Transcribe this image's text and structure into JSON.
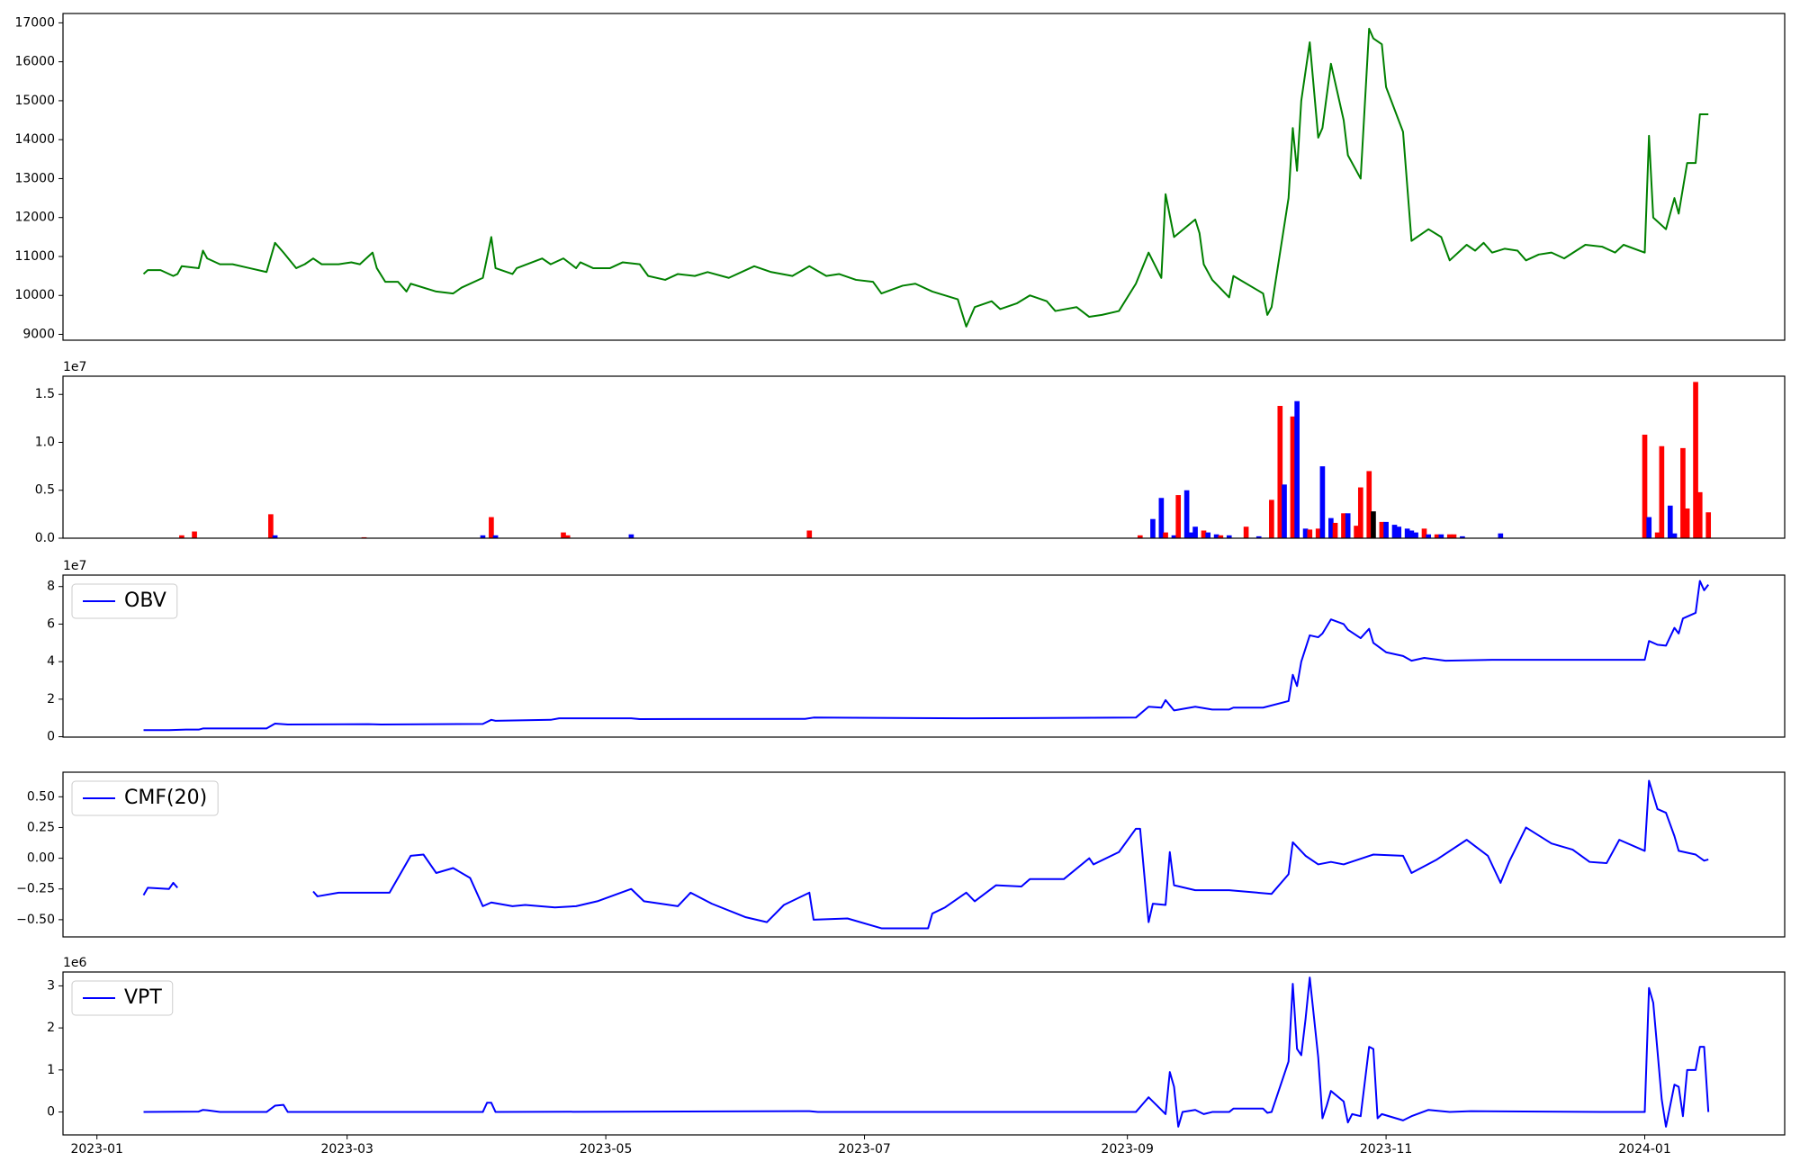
{
  "chart_data": [
    {
      "type": "line",
      "color": "green",
      "xlim": [
        19350,
        19756
      ],
      "ylim": [
        8850,
        17240
      ],
      "yticks": [
        9000,
        10000,
        11000,
        12000,
        13000,
        14000,
        15000,
        16000,
        17000
      ],
      "x": [
        19369,
        19370,
        19373,
        19376,
        19377,
        19378,
        19382,
        19383,
        19384,
        19387,
        19390,
        19394,
        19398,
        19400,
        19402,
        19405,
        19407,
        19409,
        19411,
        19415,
        19418,
        19420,
        19423,
        19424,
        19426,
        19429,
        19431,
        19432,
        19438,
        19442,
        19444,
        19449,
        19451,
        19452,
        19456,
        19457,
        19463,
        19465,
        19468,
        19471,
        19472,
        19475,
        19479,
        19482,
        19486,
        19488,
        19492,
        19495,
        19499,
        19502,
        19507,
        19513,
        19517,
        19522,
        19526,
        19530,
        19533,
        19537,
        19541,
        19543,
        19548,
        19551,
        19555,
        19561,
        19563,
        19565,
        19569,
        19571,
        19575,
        19578,
        19582,
        19584,
        19589,
        19592,
        19595,
        19599,
        19603,
        19606,
        19609,
        19610,
        19612,
        19617,
        19618,
        19619,
        19621,
        19625,
        19626,
        19633,
        19634,
        19635,
        19639,
        19640,
        19641,
        19642,
        19644,
        19646,
        19647,
        19649,
        19652,
        19653,
        19656,
        19658,
        19659,
        19661,
        19662,
        19666,
        19668,
        19672,
        19675,
        19677,
        19681,
        19683,
        19685,
        19687,
        19690,
        19693,
        19695,
        19698,
        19701,
        19704,
        19709,
        19713,
        19716,
        19718,
        19723,
        19724,
        19725,
        19728,
        19730,
        19731,
        19733,
        19735,
        19736,
        19738
      ],
      "values": [
        10550,
        10650,
        10650,
        10500,
        10550,
        10750,
        10700,
        11150,
        10950,
        10800,
        10800,
        10700,
        10600,
        11350,
        11100,
        10700,
        10800,
        10950,
        10800,
        10800,
        10850,
        10800,
        11100,
        10700,
        10350,
        10350,
        10100,
        10300,
        10100,
        10050,
        10200,
        10450,
        11500,
        10700,
        10550,
        10700,
        10950,
        10800,
        10950,
        10700,
        10850,
        10700,
        10700,
        10850,
        10800,
        10500,
        10400,
        10550,
        10500,
        10600,
        10450,
        10750,
        10600,
        10500,
        10750,
        10500,
        10550,
        10400,
        10350,
        10050,
        10250,
        10300,
        10100,
        9900,
        9200,
        9700,
        9850,
        9650,
        9800,
        10000,
        9850,
        9600,
        9700,
        9450,
        9500,
        9600,
        10300,
        11100,
        10450,
        12600,
        11500,
        11950,
        11600,
        10800,
        10400,
        9950,
        10500,
        10050,
        9500,
        9700,
        12500,
        14300,
        13200,
        15000,
        16500,
        14050,
        14300,
        15950,
        14500,
        13600,
        13000,
        16850,
        16600,
        16450,
        15350,
        14200,
        11400,
        11700,
        11500,
        10900,
        11300,
        11150,
        11350,
        11100,
        11200,
        11150,
        10900,
        11050,
        11100,
        10950,
        11300,
        11250,
        11100,
        11300,
        11100,
        14100,
        12000,
        11700,
        12500,
        12100,
        13400,
        13400,
        14650,
        14650
      ]
    },
    {
      "type": "bar",
      "offset_label": "1e7",
      "xlim": [
        19350,
        19756
      ],
      "ylim": [
        0,
        16900000
      ],
      "yticks": [
        {
          "value": 0,
          "label": "0.0"
        },
        {
          "value": 5000000,
          "label": "0.5"
        },
        {
          "value": 10000000,
          "label": "1.0"
        },
        {
          "value": 15000000,
          "label": "1.5"
        }
      ],
      "x": [
        19378,
        19381,
        19399,
        19400,
        19421,
        19449,
        19451,
        19452,
        19468,
        19469,
        19484,
        19526,
        19604,
        19607,
        19609,
        19610,
        19612,
        19613,
        19615,
        19616,
        19617,
        19619,
        19620,
        19622,
        19623,
        19625,
        19629,
        19632,
        19635,
        19637,
        19638,
        19640,
        19641,
        19643,
        19644,
        19646,
        19647,
        19649,
        19650,
        19652,
        19653,
        19655,
        19656,
        19658,
        19659,
        19661,
        19662,
        19664,
        19665,
        19667,
        19668,
        19669,
        19671,
        19672,
        19674,
        19675,
        19677,
        19678,
        19680,
        19689,
        19723,
        19724,
        19726,
        19727,
        19729,
        19730,
        19732,
        19733,
        19735,
        19736,
        19738
      ],
      "values": [
        300000,
        700000,
        2500000,
        300000,
        100000,
        300000,
        2200000,
        300000,
        600000,
        300000,
        400000,
        800000,
        300000,
        2000000,
        4200000,
        600000,
        300000,
        4500000,
        5000000,
        600000,
        1200000,
        800000,
        600000,
        400000,
        300000,
        300000,
        1200000,
        200000,
        4000000,
        13800000,
        5600000,
        12700000,
        14300000,
        1000000,
        900000,
        1000000,
        7500000,
        2100000,
        1600000,
        2600000,
        2600000,
        1300000,
        5300000,
        7000000,
        2800000,
        1700000,
        1700000,
        1400000,
        1200000,
        1000000,
        800000,
        600000,
        1000000,
        400000,
        400000,
        400000,
        400000,
        400000,
        200000,
        500000,
        10800000,
        2200000,
        600000,
        9600000,
        3400000,
        500000,
        9400000,
        3100000,
        16300000,
        4800000,
        2700000
      ],
      "colors": [
        "red",
        "red",
        "red",
        "blue",
        "red",
        "blue",
        "red",
        "blue",
        "red",
        "red",
        "blue",
        "red",
        "red",
        "blue",
        "blue",
        "red",
        "blue",
        "red",
        "blue",
        "blue",
        "blue",
        "red",
        "blue",
        "blue",
        "red",
        "blue",
        "red",
        "blue",
        "red",
        "red",
        "blue",
        "red",
        "blue",
        "blue",
        "red",
        "red",
        "blue",
        "blue",
        "red",
        "red",
        "blue",
        "red",
        "red",
        "red",
        "black",
        "red",
        "blue",
        "blue",
        "blue",
        "blue",
        "blue",
        "blue",
        "red",
        "blue",
        "red",
        "blue",
        "red",
        "red",
        "blue",
        "blue",
        "red",
        "blue",
        "red",
        "red",
        "blue",
        "blue",
        "red",
        "red",
        "red",
        "red",
        "red"
      ]
    },
    {
      "type": "line",
      "offset_label": "1e7",
      "legend": "upper left",
      "xlim": [
        19350,
        19756
      ],
      "ylim": [
        -200000,
        86100000
      ],
      "yticks": [
        0,
        {
          "value": 20000000,
          "label": "2"
        },
        {
          "value": 40000000,
          "label": "4"
        },
        {
          "value": 60000000,
          "label": "6"
        },
        {
          "value": 80000000,
          "label": "8"
        }
      ],
      "x": [
        19369,
        19375,
        19379,
        19382,
        19383,
        19398,
        19400,
        19403,
        19422,
        19425,
        19449,
        19451,
        19452,
        19465,
        19467,
        19484,
        19486,
        19525,
        19527,
        19563,
        19603,
        19606,
        19609,
        19610,
        19612,
        19617,
        19621,
        19625,
        19626,
        19633,
        19639,
        19640,
        19641,
        19642,
        19644,
        19646,
        19647,
        19649,
        19652,
        19653,
        19656,
        19658,
        19659,
        19662,
        19666,
        19668,
        19671,
        19676,
        19687,
        19714,
        19723,
        19724,
        19726,
        19728,
        19730,
        19731,
        19732,
        19735,
        19736,
        19737,
        19738
      ],
      "series": [
        {
          "name": "OBV",
          "color": "blue",
          "values": [
            3500000,
            3500000,
            3800000,
            3800000,
            4400000,
            4400000,
            7000000,
            6500000,
            6700000,
            6500000,
            6800000,
            9000000,
            8500000,
            9000000,
            9800000,
            9800000,
            9400000,
            9500000,
            10200000,
            9800000,
            10200000,
            16000000,
            15500000,
            19500000,
            14000000,
            16000000,
            14500000,
            14500000,
            15500000,
            15500000,
            19000000,
            33000000,
            27000000,
            40000000,
            54000000,
            53000000,
            55000000,
            62500000,
            60000000,
            57000000,
            52500000,
            57500000,
            50000000,
            45000000,
            43000000,
            40500000,
            42000000,
            40500000,
            41000000,
            41000000,
            41000000,
            51000000,
            49000000,
            48500000,
            58000000,
            55000000,
            63000000,
            66000000,
            83000000,
            78000000,
            81000000
          ]
        }
      ]
    },
    {
      "type": "line",
      "legend": "upper left",
      "xlim": [
        19350,
        19756
      ],
      "ylim": [
        -0.64,
        0.7
      ],
      "yticks": [
        {
          "value": -0.5,
          "label": "−0.50"
        },
        {
          "value": -0.25,
          "label": "−0.25"
        },
        {
          "value": 0,
          "label": "0.00"
        },
        {
          "value": 0.25,
          "label": "0.25"
        },
        {
          "value": 0.5,
          "label": "0.50"
        }
      ],
      "x": [
        19369,
        19370,
        19375,
        19376,
        19377,
        19390,
        19409,
        19410,
        19415,
        19422,
        19427,
        19429,
        19432,
        19435,
        19438,
        19442,
        19446,
        19449,
        19451,
        19456,
        19459,
        19466,
        19471,
        19476,
        19484,
        19487,
        19495,
        19498,
        19503,
        19511,
        19516,
        19520,
        19526,
        19527,
        19535,
        19543,
        19554,
        19555,
        19558,
        19563,
        19565,
        19570,
        19576,
        19578,
        19586,
        19592,
        19593,
        19599,
        19603,
        19604,
        19606,
        19607,
        19610,
        19611,
        19612,
        19617,
        19625,
        19635,
        19639,
        19640,
        19643,
        19646,
        19649,
        19652,
        19659,
        19666,
        19668,
        19674,
        19681,
        19686,
        19689,
        19691,
        19695,
        19701,
        19706,
        19710,
        19714,
        19717,
        19723,
        19724,
        19726,
        19728,
        19730,
        19731,
        19735,
        19737,
        19738
      ],
      "series": [
        {
          "name": "CMF(20)",
          "color": "blue",
          "values": [
            -0.3,
            -0.24,
            -0.25,
            -0.2,
            -0.24,
            null,
            -0.27,
            -0.31,
            -0.28,
            -0.28,
            -0.28,
            -0.16,
            0.02,
            0.03,
            -0.12,
            -0.08,
            -0.16,
            -0.39,
            -0.36,
            -0.39,
            -0.38,
            -0.4,
            -0.39,
            -0.35,
            -0.25,
            -0.35,
            -0.39,
            -0.28,
            -0.37,
            -0.48,
            -0.52,
            -0.38,
            -0.28,
            -0.5,
            -0.49,
            -0.57,
            -0.57,
            -0.45,
            -0.4,
            -0.28,
            -0.35,
            -0.22,
            -0.23,
            -0.17,
            -0.17,
            0.0,
            -0.05,
            0.05,
            0.24,
            0.24,
            -0.52,
            -0.37,
            -0.38,
            0.05,
            -0.22,
            -0.26,
            -0.26,
            -0.29,
            -0.13,
            0.13,
            0.02,
            -0.05,
            -0.03,
            -0.05,
            0.03,
            0.02,
            -0.12,
            -0.01,
            0.15,
            0.02,
            -0.2,
            -0.03,
            0.25,
            0.12,
            0.07,
            -0.03,
            -0.04,
            0.15,
            0.06,
            0.63,
            0.4,
            0.37,
            0.18,
            0.06,
            0.03,
            -0.02,
            -0.01
          ]
        }
      ]
    },
    {
      "type": "line",
      "offset_label": "1e6",
      "legend": "upper left",
      "xlim": [
        19350,
        19756
      ],
      "ylim": [
        -545000,
        3330000
      ],
      "yticks": [
        0,
        {
          "value": 1000000,
          "label": "1"
        },
        {
          "value": 2000000,
          "label": "2"
        },
        {
          "value": 3000000,
          "label": "3"
        }
      ],
      "xticks": [
        {
          "value": 19358,
          "label": "2023-01"
        },
        {
          "value": 19417,
          "label": "2023-03"
        },
        {
          "value": 19478,
          "label": "2023-05"
        },
        {
          "value": 19539,
          "label": "2023-07"
        },
        {
          "value": 19601,
          "label": "2023-09"
        },
        {
          "value": 19662,
          "label": "2023-11"
        },
        {
          "value": 19723,
          "label": "2024-01"
        }
      ],
      "x": [
        19369,
        19382,
        19383,
        19384,
        19387,
        19398,
        19400,
        19402,
        19403,
        19449,
        19450,
        19451,
        19452,
        19526,
        19528,
        19603,
        19606,
        19609,
        19610,
        19611,
        19612,
        19613,
        19614,
        19617,
        19619,
        19621,
        19625,
        19626,
        19633,
        19634,
        19635,
        19639,
        19640,
        19641,
        19642,
        19643,
        19644,
        19646,
        19647,
        19648,
        19649,
        19652,
        19653,
        19654,
        19656,
        19658,
        19659,
        19660,
        19661,
        19666,
        19668,
        19672,
        19677,
        19682,
        19714,
        19723,
        19724,
        19725,
        19727,
        19728,
        19730,
        19731,
        19732,
        19733,
        19735,
        19736,
        19737,
        19738
      ],
      "series": [
        {
          "name": "VPT",
          "color": "blue",
          "values": [
            0,
            10000,
            50000,
            40000,
            0,
            0,
            150000,
            170000,
            0,
            0,
            220000,
            220000,
            0,
            20000,
            0,
            0,
            350000,
            50000,
            -50000,
            950000,
            600000,
            -350000,
            0,
            50000,
            -50000,
            0,
            0,
            80000,
            80000,
            -20000,
            0,
            1200000,
            3050000,
            1500000,
            1350000,
            2200000,
            3200000,
            1300000,
            -150000,
            150000,
            500000,
            250000,
            -250000,
            -50000,
            -100000,
            1550000,
            1500000,
            -150000,
            -50000,
            -200000,
            -100000,
            50000,
            0,
            20000,
            0,
            0,
            2950000,
            2600000,
            300000,
            -350000,
            650000,
            600000,
            -100000,
            1000000,
            1000000,
            1550000,
            1550000,
            0
          ]
        }
      ]
    }
  ]
}
